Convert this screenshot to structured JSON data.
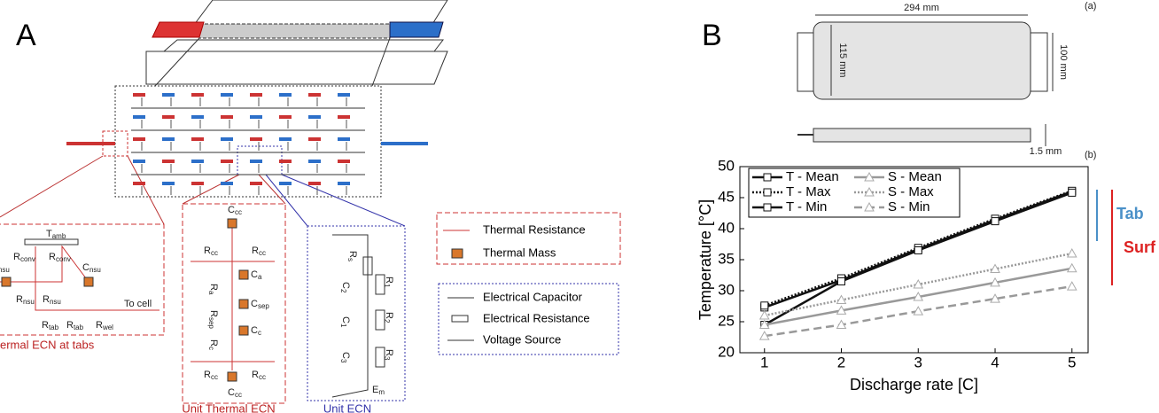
{
  "panel_a": {
    "label": "A",
    "tab_ecn": {
      "caption": "ermal ECN at tabs",
      "note": "To cell",
      "labels": [
        {
          "main": "T",
          "sub": "amb"
        },
        {
          "main": "R",
          "sub": "conv"
        },
        {
          "main": "R",
          "sub": "conv"
        },
        {
          "main": "C",
          "sub": "nsu"
        },
        {
          "main": "C",
          "sub": "nsu"
        },
        {
          "main": "R",
          "sub": "nsu"
        },
        {
          "main": "R",
          "sub": "nsu"
        },
        {
          "main": "R",
          "sub": "tab"
        },
        {
          "main": "R",
          "sub": "tab"
        },
        {
          "main": "R",
          "sub": "wel"
        }
      ]
    },
    "unit_thermal_ecn": {
      "caption": "Unit Thermal ECN",
      "labels": [
        {
          "main": "C",
          "sub": "cc"
        },
        {
          "main": "R",
          "sub": "cc"
        },
        {
          "main": "R",
          "sub": "cc"
        },
        {
          "main": "C",
          "sub": "a"
        },
        {
          "main": "R",
          "sub": "a"
        },
        {
          "main": "C",
          "sub": "sep"
        },
        {
          "main": "R",
          "sub": "sep"
        },
        {
          "main": "C",
          "sub": "c"
        },
        {
          "main": "R",
          "sub": "c"
        },
        {
          "main": "R",
          "sub": "cc"
        },
        {
          "main": "R",
          "sub": "cc"
        },
        {
          "main": "C",
          "sub": "cc"
        }
      ]
    },
    "unit_ecn": {
      "caption": "Unit ECN",
      "labels": [
        {
          "main": "R",
          "sub": "s"
        },
        {
          "main": "C",
          "sub": "2"
        },
        {
          "main": "R",
          "sub": "1"
        },
        {
          "main": "C",
          "sub": "1"
        },
        {
          "main": "R",
          "sub": "2"
        },
        {
          "main": "C",
          "sub": "3"
        },
        {
          "main": "R",
          "sub": "3"
        },
        {
          "main": "E",
          "sub": "m"
        }
      ]
    },
    "legend_thermal": [
      "Thermal Resistance",
      "Thermal Mass"
    ],
    "legend_electrical": [
      "Electrical Capacitor",
      "Electrical Resistance",
      "Voltage Source"
    ]
  },
  "panel_b": {
    "label": "B",
    "sub_a": "(a)",
    "sub_b": "(b)",
    "dims": [
      "294 mm",
      "115 mm",
      "100 mm",
      "1.5 mm"
    ],
    "annotations": [
      "Tab",
      "Surf"
    ]
  },
  "chart_data": {
    "type": "line",
    "x_label": "Discharge rate [C]",
    "y_label": "Temperature [°C]",
    "x": [
      1,
      2,
      3,
      4,
      5
    ],
    "xlim": [
      0.68,
      5.21
    ],
    "xticks": [
      1,
      2,
      3,
      4,
      5
    ],
    "ylim": [
      20,
      50
    ],
    "yticks": [
      20,
      25,
      30,
      35,
      40,
      45,
      50
    ],
    "legend": "upper left",
    "series": [
      {
        "name": "T - Mean",
        "color": "#111111",
        "style": "solid",
        "marker": "square",
        "values": [
          27.3,
          31.7,
          36.7,
          41.4,
          46.0
        ]
      },
      {
        "name": "T - Max",
        "color": "#111111",
        "style": "dotted",
        "marker": "square",
        "values": [
          27.6,
          32.0,
          36.9,
          41.6,
          46.1
        ]
      },
      {
        "name": "T - Min",
        "color": "#111111",
        "style": "solid",
        "marker": "square",
        "values": [
          24.5,
          31.5,
          36.5,
          41.2,
          45.8
        ]
      },
      {
        "name": "S - Mean",
        "color": "#999999",
        "style": "solid",
        "marker": "triangle",
        "values": [
          24.5,
          26.8,
          29.0,
          31.3,
          33.6
        ]
      },
      {
        "name": "S - Max",
        "color": "#999999",
        "style": "dotted",
        "marker": "triangle",
        "values": [
          26.0,
          28.5,
          31.0,
          33.5,
          36.0
        ]
      },
      {
        "name": "S - Min",
        "color": "#999999",
        "style": "dashed",
        "marker": "triangle",
        "values": [
          22.7,
          24.5,
          26.7,
          28.7,
          30.7
        ]
      }
    ]
  }
}
